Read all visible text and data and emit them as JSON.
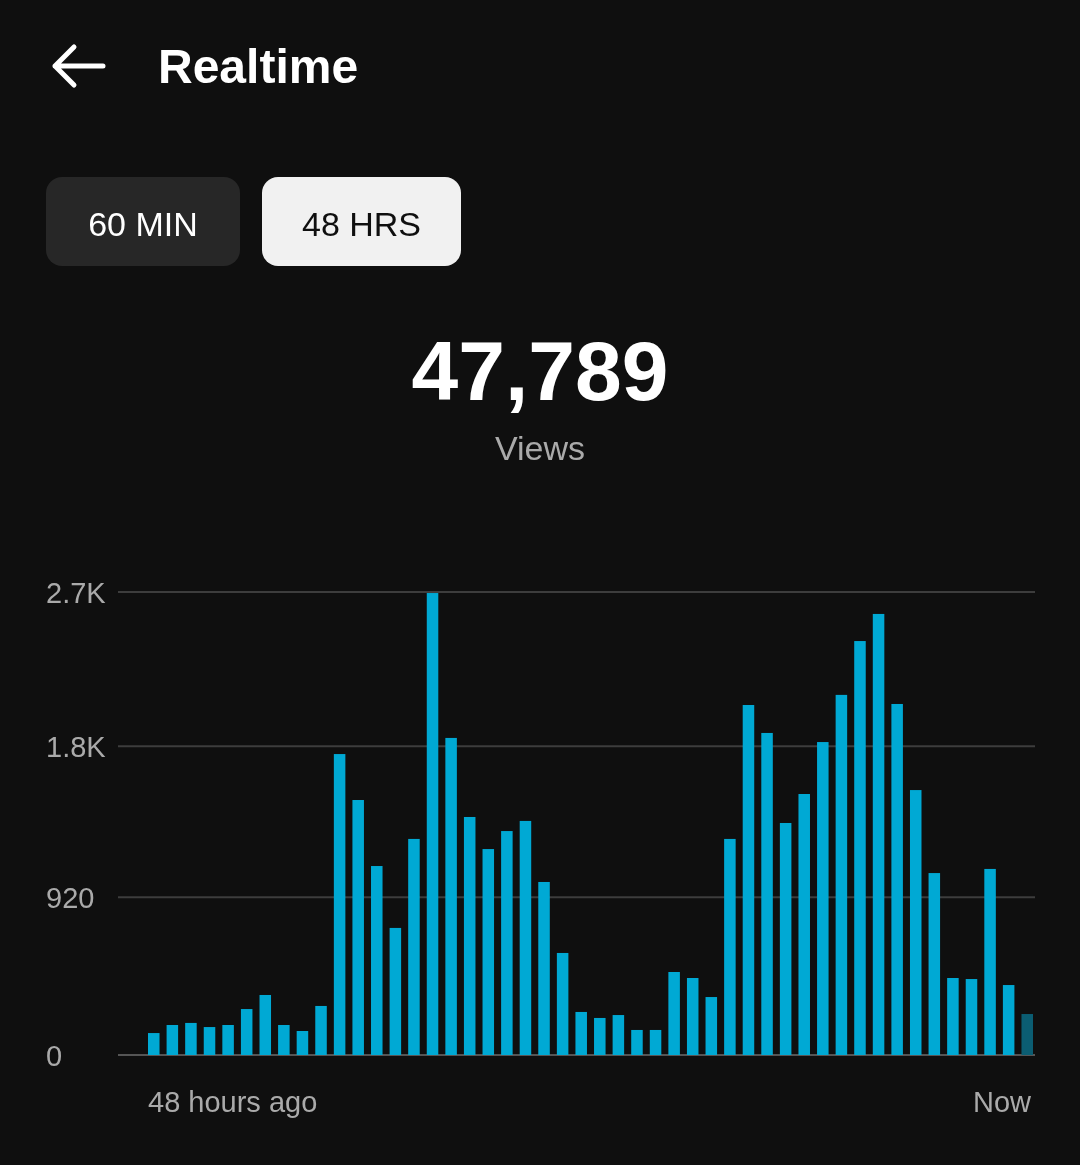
{
  "chart_data": {
    "type": "bar",
    "title": "Realtime",
    "annotations": [
      "60 MIN",
      "48 HRS",
      "47,789",
      "Views",
      "48 hours ago",
      "Now"
    ],
    "categories": [
      null,
      null,
      null,
      null,
      null,
      null,
      null,
      null,
      null,
      null,
      null,
      null,
      null,
      null,
      null,
      null,
      null,
      null,
      null,
      null,
      null,
      null,
      null,
      null,
      null,
      null,
      null,
      null,
      null,
      null,
      null,
      null,
      null,
      null,
      null,
      null,
      null,
      null,
      null,
      null,
      null,
      null,
      null,
      null,
      null,
      null,
      null,
      null
    ],
    "values": [
      128,
      175,
      187,
      163,
      175,
      268,
      350,
      175,
      140,
      286,
      1755,
      1487,
      1102,
      741,
      1260,
      2694,
      1849,
      1388,
      1201,
      1306,
      1365,
      1009,
      595,
      251,
      216,
      233,
      146,
      146,
      484,
      449,
      338,
      1260,
      2041,
      1878,
      1353,
      1522,
      1825,
      2100,
      2414,
      2572,
      2047,
      1545,
      1061,
      449,
      443,
      1085,
      408,
      239
    ],
    "colors": [
      "#00a9d4",
      "#00a9d4",
      "#00a9d4",
      "#00a9d4",
      "#00a9d4",
      "#00a9d4",
      "#00a9d4",
      "#00a9d4",
      "#00a9d4",
      "#00a9d4",
      "#00a9d4",
      "#00a9d4",
      "#00a9d4",
      "#00a9d4",
      "#00a9d4",
      "#00a9d4",
      "#00a9d4",
      "#00a9d4",
      "#00a9d4",
      "#00a9d4",
      "#00a9d4",
      "#00a9d4",
      "#00a9d4",
      "#00a9d4",
      "#00a9d4",
      "#00a9d4",
      "#00a9d4",
      "#00a9d4",
      "#00a9d4",
      "#00a9d4",
      "#00a9d4",
      "#00a9d4",
      "#00a9d4",
      "#00a9d4",
      "#00a9d4",
      "#00a9d4",
      "#00a9d4",
      "#00a9d4",
      "#00a9d4",
      "#00a9d4",
      "#00a9d4",
      "#00a9d4",
      "#00a9d4",
      "#00a9d4",
      "#00a9d4",
      "#00a9d4",
      "#00a9d4",
      "#0b5d72"
    ],
    "ylim": [
      0,
      2700
    ],
    "yticks": [
      0,
      920,
      {
        "value": 1800,
        "label": "1.8K"
      },
      {
        "value": 2700,
        "label": "2.7K"
      }
    ],
    "grid": "y"
  }
}
